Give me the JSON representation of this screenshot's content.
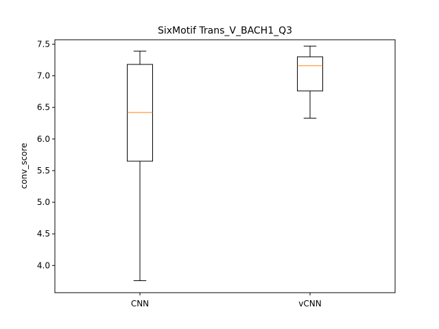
{
  "chart_data": {
    "type": "box",
    "title": "SixMotif Trans_V_BACH1_Q3",
    "xlabel": "",
    "ylabel": "conv_score",
    "ylim": [
      3.57,
      7.57
    ],
    "yticks": [
      4.0,
      4.5,
      5.0,
      5.5,
      6.0,
      6.5,
      7.0,
      7.5
    ],
    "ytick_labels": [
      "4.0",
      "4.5",
      "5.0",
      "5.5",
      "6.0",
      "6.5",
      "7.0",
      "7.5"
    ],
    "grid": false,
    "categories": [
      "CNN",
      "vCNN"
    ],
    "boxes": [
      {
        "label": "CNN",
        "whislo": 3.76,
        "q1": 5.65,
        "med": 6.42,
        "q3": 7.18,
        "whishi": 7.39
      },
      {
        "label": "vCNN",
        "whislo": 6.33,
        "q1": 6.76,
        "med": 7.16,
        "q3": 7.3,
        "whishi": 7.47
      }
    ],
    "colors": {
      "box": "#000000",
      "median": "#ff7f0e",
      "whisker": "#000000"
    }
  }
}
